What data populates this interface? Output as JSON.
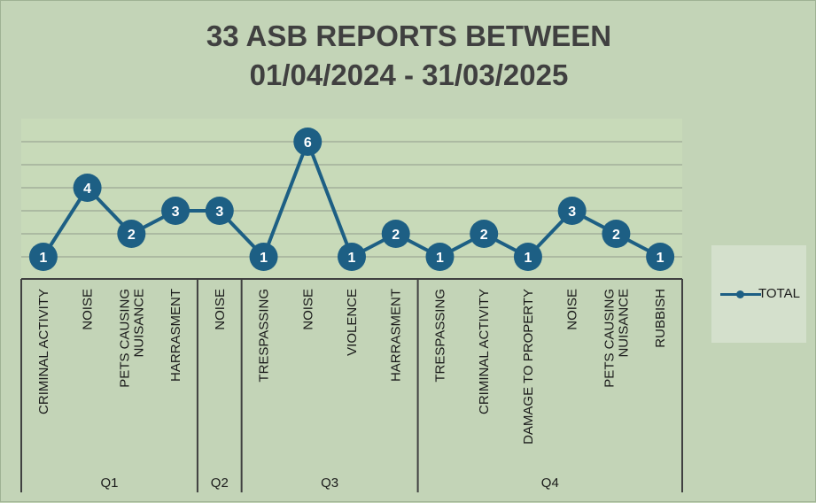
{
  "chart_data": {
    "type": "line",
    "title": [
      "33 ASB REPORTS BETWEEN",
      "01/04/2024 - 31/03/2025"
    ],
    "series": [
      {
        "name": "TOTAL",
        "values": [
          1,
          4,
          2,
          3,
          3,
          1,
          6,
          1,
          2,
          1,
          2,
          1,
          3,
          2,
          1
        ]
      }
    ],
    "categories": [
      [
        "CRIMINAL ACTIVITY"
      ],
      [
        "NOISE"
      ],
      [
        "PETS CAUSING",
        "NUISANCE"
      ],
      [
        "HARRASMENT"
      ],
      [
        "NOISE"
      ],
      [
        "TRESPASSING"
      ],
      [
        "NOISE"
      ],
      [
        "VIOLENCE"
      ],
      [
        "HARRASMENT"
      ],
      [
        "TRESPASSING"
      ],
      [
        "CRIMINAL ACTIVITY"
      ],
      [
        "DAMAGE TO PROPERTY"
      ],
      [
        "NOISE"
      ],
      [
        "PETS CAUSING",
        "NUISANCE"
      ],
      [
        "RUBBISH"
      ]
    ],
    "groups": [
      {
        "label": "Q1",
        "count": 4
      },
      {
        "label": "Q2",
        "count": 1
      },
      {
        "label": "Q3",
        "count": 4
      },
      {
        "label": "Q4",
        "count": 6
      }
    ],
    "ylim": [
      0,
      6
    ],
    "grid": true,
    "legend_position": "right",
    "colors": {
      "line": "#1d5f84",
      "grid": "#9aa894",
      "axis": "#404040",
      "background": "#c3d4b7",
      "plot": "#c8dab9"
    }
  }
}
